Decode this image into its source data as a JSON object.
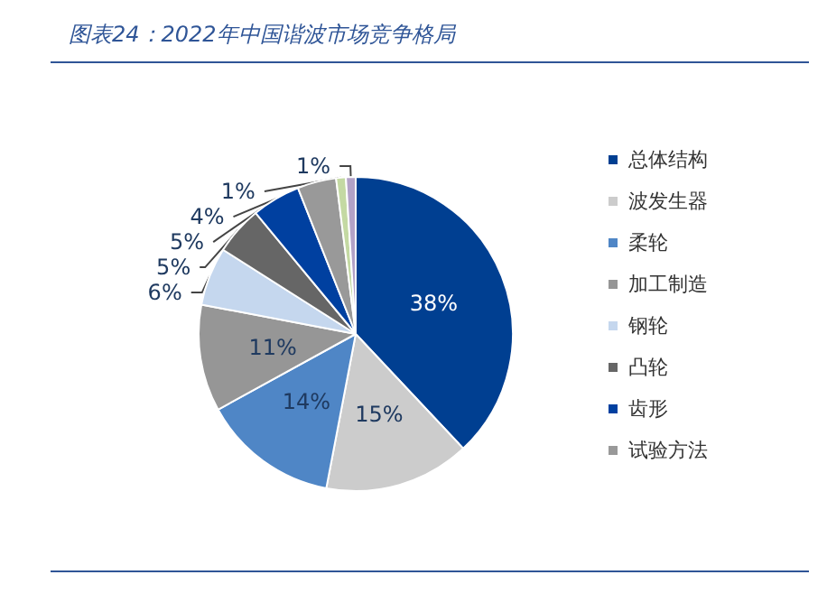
{
  "chart_data": {
    "type": "pie",
    "title": "图表24：2022年中国谐波市场竞争格局",
    "categories": [
      "总体结构",
      "波发生器",
      "柔轮",
      "加工制造",
      "钢轮",
      "凸轮",
      "齿形",
      "试验方法",
      null,
      null
    ],
    "values": [
      38,
      15,
      14,
      11,
      6,
      5,
      5,
      4,
      1,
      1
    ],
    "colors": [
      "#003f91",
      "#cccccc",
      "#4f86c6",
      "#969696",
      "#c5d7ee",
      "#666666",
      "#0040a0",
      "#999999",
      "#c4d9a3",
      "#b3a2c7"
    ],
    "value_labels": [
      "38%",
      "15%",
      "14%",
      "11%",
      "6%",
      "5%",
      "5%",
      "4%",
      "1%",
      "1%"
    ],
    "legend": "right"
  }
}
